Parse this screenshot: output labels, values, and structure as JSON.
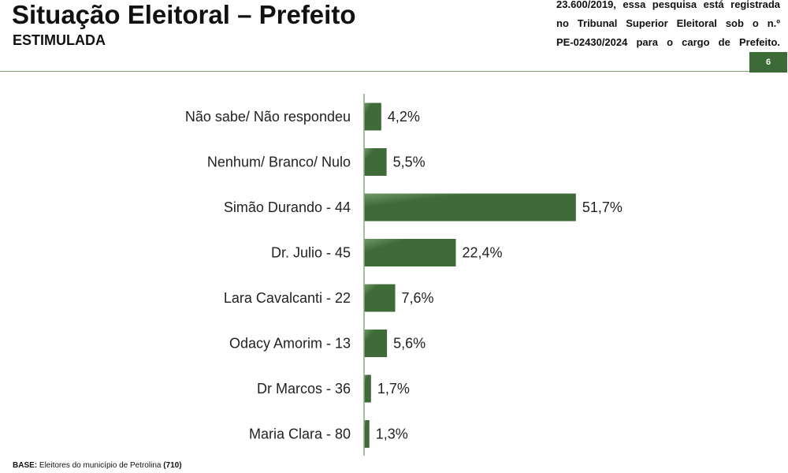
{
  "header": {
    "title": "Situação Eleitoral – Prefeito",
    "subtitle": "ESTIMULADA",
    "registration_lines": [
      "23.600/2019, essa pesquisa está registrada",
      "no Tribunal Superior Eleitoral sob o n.º",
      "PE-02430/2024 para o cargo de Prefeito."
    ],
    "page_number": "6"
  },
  "footer": {
    "base_label": "BASE:",
    "base_text": "Eleitores do município de Petrolina",
    "base_count": "(710)"
  },
  "colors": {
    "accent": "#3d6b38",
    "bar_light": "#6f9a67",
    "bar_dark": "#3f6b38"
  },
  "chart_data": {
    "type": "bar",
    "orientation": "horizontal",
    "categories": [
      "Não sabe/ Não respondeu",
      "Nenhum/ Branco/ Nulo",
      "Simão Durando - 44",
      "Dr. Julio - 45",
      "Lara Cavalcanti - 22",
      "Odacy Amorim - 13",
      "Dr Marcos - 36",
      "Maria Clara - 80"
    ],
    "values": [
      4.2,
      5.5,
      51.7,
      22.4,
      7.6,
      5.6,
      1.7,
      1.3
    ],
    "value_labels": [
      "4,2%",
      "5,5%",
      "51,7%",
      "22,4%",
      "7,6%",
      "5,6%",
      "1,7%",
      "1,3%"
    ],
    "xlim": [
      0,
      100
    ],
    "grid": false,
    "legend": "none"
  }
}
